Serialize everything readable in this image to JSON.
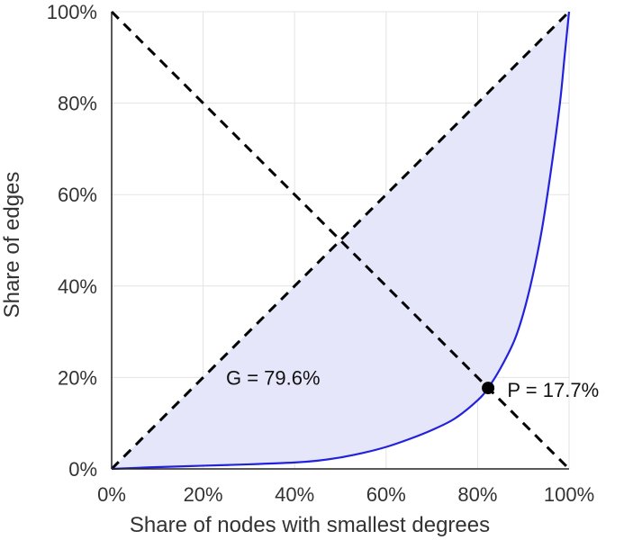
{
  "chart_data": {
    "type": "line",
    "title": "",
    "xlabel": "Share of nodes with smallest degrees",
    "ylabel": "Share of edges",
    "xlim": [
      0,
      1
    ],
    "ylim": [
      0,
      1
    ],
    "xticks": [
      0,
      0.2,
      0.4,
      0.6,
      0.8,
      1.0
    ],
    "yticks": [
      0,
      0.2,
      0.4,
      0.6,
      0.8,
      1.0
    ],
    "xtick_labels": [
      "0%",
      "20%",
      "40%",
      "60%",
      "80%",
      "100%"
    ],
    "ytick_labels": [
      "0%",
      "20%",
      "40%",
      "60%",
      "80%",
      "100%"
    ],
    "grid": true,
    "colors": {
      "curve": "#2222dd",
      "fill": "#e6e6fa",
      "dashed": "#000000",
      "grid": "#e3e3e3",
      "axis": "#222222",
      "text": "#333333"
    },
    "series": [
      {
        "name": "Lorenz curve",
        "style": "solid",
        "x": [
          0,
          0.05,
          0.1,
          0.2,
          0.3,
          0.4,
          0.45,
          0.5,
          0.55,
          0.6,
          0.65,
          0.7,
          0.75,
          0.8,
          0.823,
          0.85,
          0.88,
          0.9,
          0.92,
          0.94,
          0.96,
          0.98,
          0.99,
          1.0
        ],
        "y": [
          0,
          0.002,
          0.004,
          0.007,
          0.01,
          0.014,
          0.018,
          0.025,
          0.035,
          0.048,
          0.065,
          0.085,
          0.11,
          0.15,
          0.177,
          0.22,
          0.28,
          0.34,
          0.42,
          0.52,
          0.65,
          0.8,
          0.9,
          1.0
        ]
      },
      {
        "name": "Line of equality",
        "style": "dashed",
        "x": [
          0,
          1
        ],
        "y": [
          0,
          1
        ]
      },
      {
        "name": "Anti-diagonal",
        "style": "dashed",
        "x": [
          0,
          1
        ],
        "y": [
          1,
          0
        ]
      }
    ],
    "shaded_region": "between line of equality and Lorenz curve",
    "point": {
      "x": 0.823,
      "y": 0.177
    },
    "annotations": {
      "gini": {
        "text": "G = 79.6%",
        "x": 0.25,
        "y": 0.2
      },
      "point": {
        "text": "P = 17.7%",
        "x": 0.865,
        "y": 0.177
      }
    }
  }
}
